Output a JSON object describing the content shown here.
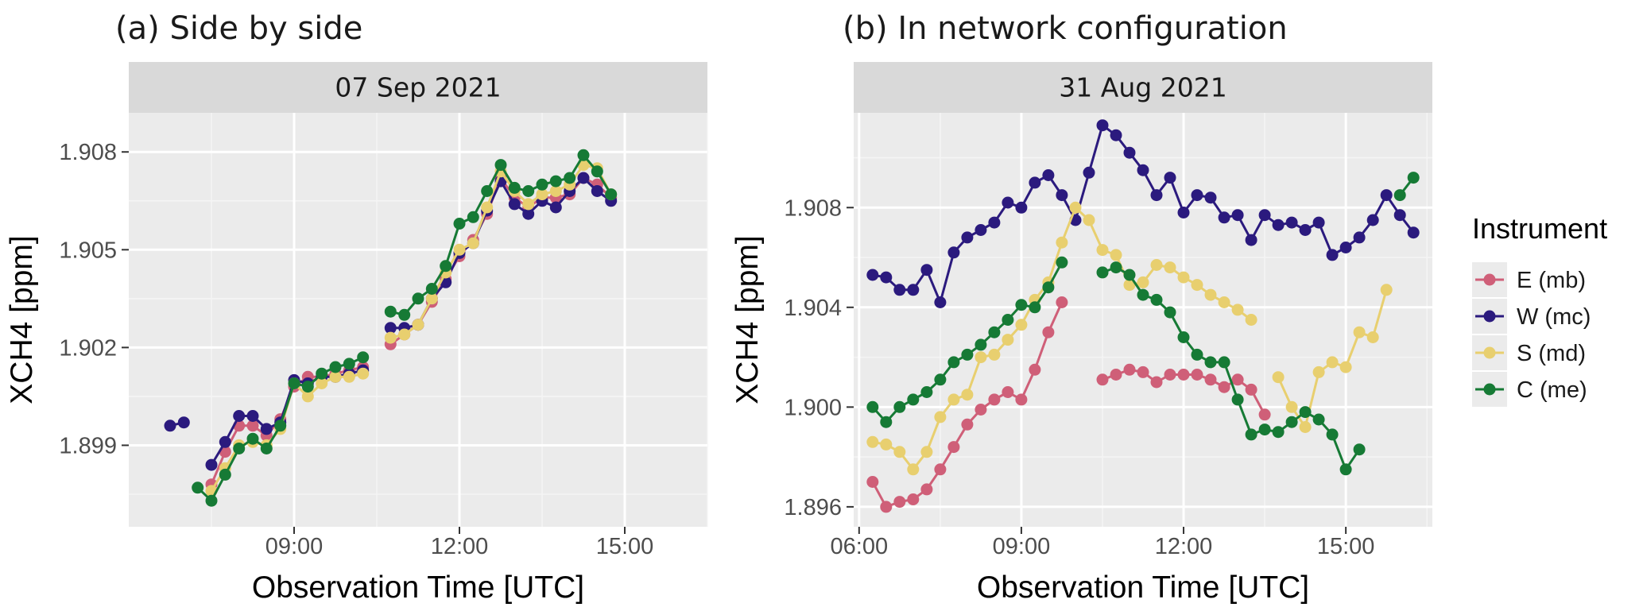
{
  "legend": {
    "title": "Instrument",
    "items": [
      {
        "label": "E (mb)",
        "color": "#cf5f78"
      },
      {
        "label": "W (mc)",
        "color": "#2b1a7e"
      },
      {
        "label": "S (md)",
        "color": "#e8cf6f"
      },
      {
        "label": "C (me)",
        "color": "#167a35"
      }
    ]
  },
  "chart_data": [
    {
      "type": "line",
      "title": "(a) Side by side",
      "strip": "07 Sep 2021",
      "xlabel": "Observation Time [UTC]",
      "ylabel": "XCH4  [ppm]",
      "xlim": [
        "06:00",
        "16:30"
      ],
      "ylim": [
        1.8965,
        1.9092
      ],
      "x_ticks": [
        "09:00",
        "12:00",
        "15:00"
      ],
      "y_ticks": [
        "1.899",
        "1.902",
        "1.905",
        "1.908"
      ],
      "grid": true,
      "series": [
        {
          "name": "E (mb)",
          "color": "#cf5f78",
          "segments": [
            {
              "x": [
                "07:30",
                "07:45",
                "08:00",
                "08:15",
                "08:30",
                "08:45",
                "09:00",
                "09:15",
                "09:30",
                "09:45",
                "10:00",
                "10:15"
              ],
              "y": [
                1.8978,
                1.8988,
                1.8996,
                1.8996,
                1.8993,
                1.8998,
                1.9008,
                1.9011,
                1.9011,
                1.9012,
                1.9013,
                1.9014
              ]
            },
            {
              "x": [
                "10:45",
                "11:00",
                "11:15",
                "11:30",
                "11:45",
                "12:00",
                "12:15",
                "12:30",
                "12:45",
                "13:00",
                "13:15",
                "13:30",
                "13:45",
                "14:00",
                "14:15",
                "14:30",
                "14:45"
              ],
              "y": [
                1.9021,
                1.9024,
                1.9027,
                1.9034,
                1.9041,
                1.9048,
                1.9053,
                1.9061,
                1.9072,
                1.9066,
                1.9063,
                1.9066,
                1.9066,
                1.9067,
                1.9072,
                1.907,
                1.9066
              ]
            }
          ]
        },
        {
          "name": "W (mc)",
          "color": "#2b1a7e",
          "segments": [
            {
              "x": [
                "06:45",
                "07:00"
              ],
              "y": [
                1.8996,
                1.8997
              ]
            },
            {
              "x": [
                "07:30",
                "07:45",
                "08:00",
                "08:15",
                "08:30",
                "08:45",
                "09:00",
                "09:15",
                "09:30",
                "09:45",
                "10:00",
                "10:15"
              ],
              "y": [
                1.8984,
                1.8991,
                1.8999,
                1.8999,
                1.8995,
                1.8997,
                1.901,
                1.9009,
                1.9011,
                1.9011,
                1.9012,
                1.9013
              ]
            },
            {
              "x": [
                "10:45",
                "11:00",
                "11:15",
                "11:30",
                "11:45",
                "12:00",
                "12:15",
                "12:30",
                "12:45",
                "13:00",
                "13:15",
                "13:30",
                "13:45",
                "14:00",
                "14:15",
                "14:30",
                "14:45"
              ],
              "y": [
                1.9026,
                1.9026,
                1.9027,
                1.9035,
                1.904,
                1.9049,
                1.9052,
                1.9062,
                1.9071,
                1.9064,
                1.9061,
                1.9065,
                1.9063,
                1.9068,
                1.9072,
                1.9068,
                1.9065
              ]
            }
          ]
        },
        {
          "name": "S (md)",
          "color": "#e8cf6f",
          "segments": [
            {
              "x": [
                "07:30",
                "07:45",
                "08:00",
                "08:15",
                "08:30",
                "08:45",
                "09:00",
                "09:15",
                "09:30",
                "09:45",
                "10:00",
                "10:15"
              ],
              "y": [
                1.8976,
                1.8983,
                1.899,
                1.8991,
                1.899,
                1.8995,
                1.9009,
                1.9005,
                1.9009,
                1.9011,
                1.9011,
                1.9012
              ]
            },
            {
              "x": [
                "10:45",
                "11:00",
                "11:15",
                "11:30",
                "11:45",
                "12:00",
                "12:15",
                "12:30",
                "12:45",
                "13:00",
                "13:15",
                "13:30",
                "13:45",
                "14:00",
                "14:15",
                "14:30",
                "14:45"
              ],
              "y": [
                1.9023,
                1.9024,
                1.9027,
                1.9035,
                1.9043,
                1.905,
                1.9052,
                1.9063,
                1.9074,
                1.9068,
                1.9064,
                1.9067,
                1.9068,
                1.907,
                1.9076,
                1.9075,
                1.9067
              ]
            }
          ]
        },
        {
          "name": "C (me)",
          "color": "#167a35",
          "segments": [
            {
              "x": [
                "07:15",
                "07:30",
                "07:45",
                "08:00",
                "08:15",
                "08:30",
                "08:45",
                "09:00",
                "09:15",
                "09:30",
                "09:45",
                "10:00",
                "10:15"
              ],
              "y": [
                1.8977,
                1.8973,
                1.8981,
                1.8989,
                1.8992,
                1.8989,
                1.8996,
                1.9009,
                1.9008,
                1.9012,
                1.9014,
                1.9015,
                1.9017
              ]
            },
            {
              "x": [
                "10:45",
                "11:00",
                "11:15",
                "11:30",
                "11:45",
                "12:00",
                "12:15",
                "12:30",
                "12:45",
                "13:00",
                "13:15",
                "13:30",
                "13:45",
                "14:00",
                "14:15",
                "14:30",
                "14:45"
              ],
              "y": [
                1.9031,
                1.903,
                1.9035,
                1.9038,
                1.9045,
                1.9058,
                1.906,
                1.9068,
                1.9076,
                1.9069,
                1.9068,
                1.907,
                1.9071,
                1.9072,
                1.9079,
                1.9074,
                1.9067
              ]
            }
          ]
        }
      ]
    },
    {
      "type": "line",
      "title": "(b) In network configuration",
      "strip": "31 Aug 2021",
      "xlabel": "Observation Time [UTC]",
      "ylabel": "XCH4  [ppm]",
      "xlim": [
        "05:54",
        "16:36"
      ],
      "ylim": [
        1.8952,
        1.9118
      ],
      "x_ticks": [
        "06:00",
        "09:00",
        "12:00",
        "15:00"
      ],
      "y_ticks": [
        "1.896",
        "1.900",
        "1.904",
        "1.908"
      ],
      "grid": true,
      "series": [
        {
          "name": "E (mb)",
          "color": "#cf5f78",
          "segments": [
            {
              "x": [
                "06:15",
                "06:30",
                "06:45",
                "07:00",
                "07:15",
                "07:30",
                "07:45",
                "08:00",
                "08:15",
                "08:30",
                "08:45",
                "09:00",
                "09:15",
                "09:30",
                "09:45"
              ],
              "y": [
                1.897,
                1.896,
                1.8962,
                1.8963,
                1.8967,
                1.8975,
                1.8984,
                1.8993,
                1.8999,
                1.9003,
                1.9006,
                1.9003,
                1.9015,
                1.903,
                1.9042
              ]
            },
            {
              "x": [
                "10:30",
                "10:45",
                "11:00",
                "11:15",
                "11:30",
                "11:45",
                "12:00",
                "12:15",
                "12:30",
                "12:45",
                "13:00",
                "13:15",
                "13:30"
              ],
              "y": [
                1.9011,
                1.9013,
                1.9015,
                1.9014,
                1.901,
                1.9013,
                1.9013,
                1.9013,
                1.9011,
                1.9008,
                1.9011,
                1.9007,
                1.8997
              ]
            }
          ]
        },
        {
          "name": "W (mc)",
          "color": "#2b1a7e",
          "segments": [
            {
              "x": [
                "06:15",
                "06:30",
                "06:45",
                "07:00",
                "07:15",
                "07:30",
                "07:45",
                "08:00",
                "08:15",
                "08:30",
                "08:45",
                "09:00",
                "09:15",
                "09:30",
                "09:45",
                "10:00",
                "10:15",
                "10:30",
                "10:45",
                "11:00",
                "11:15",
                "11:30",
                "11:45",
                "12:00",
                "12:15",
                "12:30",
                "12:45",
                "13:00",
                "13:15",
                "13:30",
                "13:45",
                "14:00",
                "14:15",
                "14:30",
                "14:45",
                "15:00",
                "15:15",
                "15:30",
                "15:45",
                "16:00",
                "16:15"
              ],
              "y": [
                1.9053,
                1.9052,
                1.9047,
                1.9047,
                1.9055,
                1.9042,
                1.9062,
                1.9068,
                1.9071,
                1.9074,
                1.9082,
                1.908,
                1.909,
                1.9093,
                1.9085,
                1.9075,
                1.9094,
                1.9113,
                1.9109,
                1.9102,
                1.9095,
                1.9085,
                1.9092,
                1.9078,
                1.9085,
                1.9084,
                1.9076,
                1.9077,
                1.9067,
                1.9077,
                1.9073,
                1.9074,
                1.9071,
                1.9074,
                1.9061,
                1.9064,
                1.9068,
                1.9075,
                1.9085,
                1.9077,
                1.907
              ]
            }
          ]
        },
        {
          "name": "S (md)",
          "color": "#e8cf6f",
          "segments": [
            {
              "x": [
                "06:15",
                "06:30",
                "06:45",
                "07:00",
                "07:15",
                "07:30",
                "07:45",
                "08:00",
                "08:15",
                "08:30",
                "08:45",
                "09:00",
                "09:15",
                "09:30",
                "09:45",
                "10:00",
                "10:15",
                "10:30",
                "10:45",
                "11:00",
                "11:15",
                "11:30",
                "11:45",
                "12:00",
                "12:15",
                "12:30",
                "12:45",
                "13:00",
                "13:15"
              ],
              "y": [
                1.8986,
                1.8985,
                1.8982,
                1.8975,
                1.8982,
                1.8996,
                1.9003,
                1.9005,
                1.902,
                1.9021,
                1.9027,
                1.9033,
                1.9043,
                1.905,
                1.9066,
                1.908,
                1.9075,
                1.9063,
                1.9061,
                1.9049,
                1.905,
                1.9057,
                1.9056,
                1.9052,
                1.9049,
                1.9045,
                1.9042,
                1.9039,
                1.9035
              ]
            },
            {
              "x": [
                "13:45",
                "14:00",
                "14:15",
                "14:30",
                "14:45",
                "15:00",
                "15:15",
                "15:30",
                "15:45"
              ],
              "y": [
                1.9012,
                1.9,
                1.8992,
                1.9014,
                1.9018,
                1.9016,
                1.903,
                1.9028,
                1.9047
              ]
            }
          ]
        },
        {
          "name": "C (me)",
          "color": "#167a35",
          "segments": [
            {
              "x": [
                "06:15",
                "06:30",
                "06:45",
                "07:00",
                "07:15",
                "07:30",
                "07:45",
                "08:00",
                "08:15",
                "08:30",
                "08:45",
                "09:00",
                "09:15",
                "09:30",
                "09:45"
              ],
              "y": [
                1.9,
                1.8994,
                1.9,
                1.9003,
                1.9006,
                1.9011,
                1.9018,
                1.9021,
                1.9025,
                1.903,
                1.9035,
                1.9041,
                1.904,
                1.9048,
                1.9058
              ]
            },
            {
              "x": [
                "10:30",
                "10:45",
                "11:00",
                "11:15",
                "11:30",
                "11:45",
                "12:00",
                "12:15",
                "12:30",
                "12:45",
                "13:00",
                "13:15",
                "13:30",
                "13:45",
                "14:00",
                "14:15",
                "14:30",
                "14:45",
                "15:00",
                "15:15"
              ],
              "y": [
                1.9054,
                1.9056,
                1.9053,
                1.9045,
                1.9043,
                1.9038,
                1.9028,
                1.9021,
                1.9018,
                1.9018,
                1.9003,
                1.8989,
                1.8991,
                1.899,
                1.8994,
                1.8998,
                1.8995,
                1.8989,
                1.8975,
                1.8983
              ]
            },
            {
              "x": [
                "16:00",
                "16:15"
              ],
              "y": [
                1.9085,
                1.9092
              ]
            }
          ]
        }
      ]
    }
  ]
}
